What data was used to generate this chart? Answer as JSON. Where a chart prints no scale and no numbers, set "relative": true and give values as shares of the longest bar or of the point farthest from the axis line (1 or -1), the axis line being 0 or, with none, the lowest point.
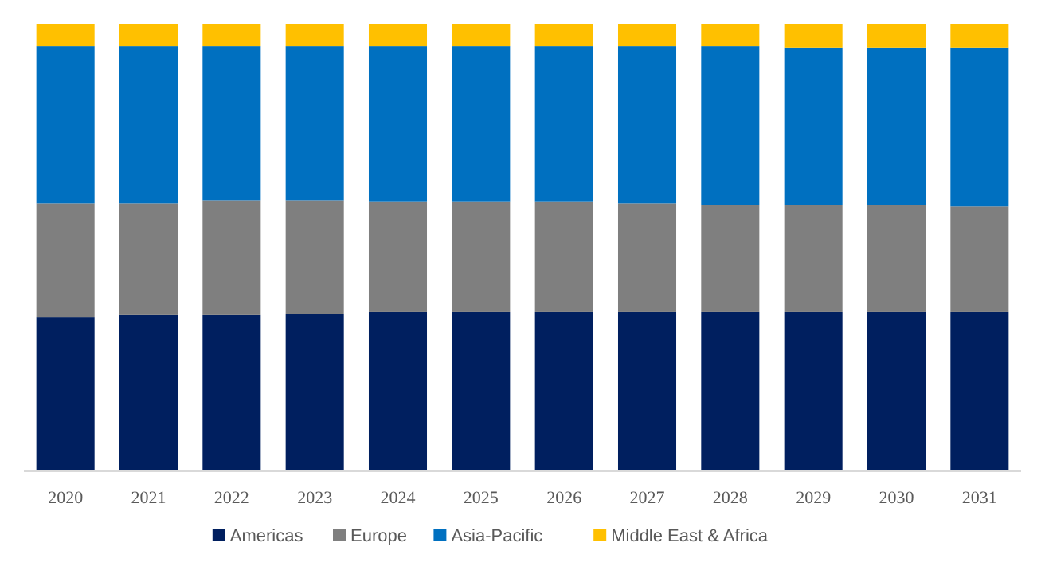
{
  "chart_data": {
    "type": "bar",
    "stacked": true,
    "relative": true,
    "legend": "bottom",
    "categories": [
      "2020",
      "2021",
      "2022",
      "2023",
      "2024",
      "2025",
      "2026",
      "2027",
      "2028",
      "2029",
      "2030",
      "2031"
    ],
    "series": [
      {
        "name": "Americas",
        "color": "#001f5f",
        "values": [
          0.345,
          0.349,
          0.349,
          0.352,
          0.356,
          0.356,
          0.356,
          0.356,
          0.356,
          0.356,
          0.356,
          0.356
        ]
      },
      {
        "name": "Europe",
        "color": "#7f7f7f",
        "values": [
          0.254,
          0.25,
          0.257,
          0.254,
          0.246,
          0.246,
          0.246,
          0.243,
          0.239,
          0.24,
          0.24,
          0.236
        ]
      },
      {
        "name": "Asia-Pacific",
        "color": "#0070c0",
        "values": [
          0.351,
          0.351,
          0.344,
          0.344,
          0.348,
          0.348,
          0.348,
          0.351,
          0.355,
          0.351,
          0.351,
          0.355
        ]
      },
      {
        "name": "Middle East & Africa",
        "color": "#ffc000",
        "values": [
          0.05,
          0.05,
          0.05,
          0.05,
          0.05,
          0.05,
          0.05,
          0.05,
          0.05,
          0.053,
          0.053,
          0.053
        ]
      }
    ]
  }
}
